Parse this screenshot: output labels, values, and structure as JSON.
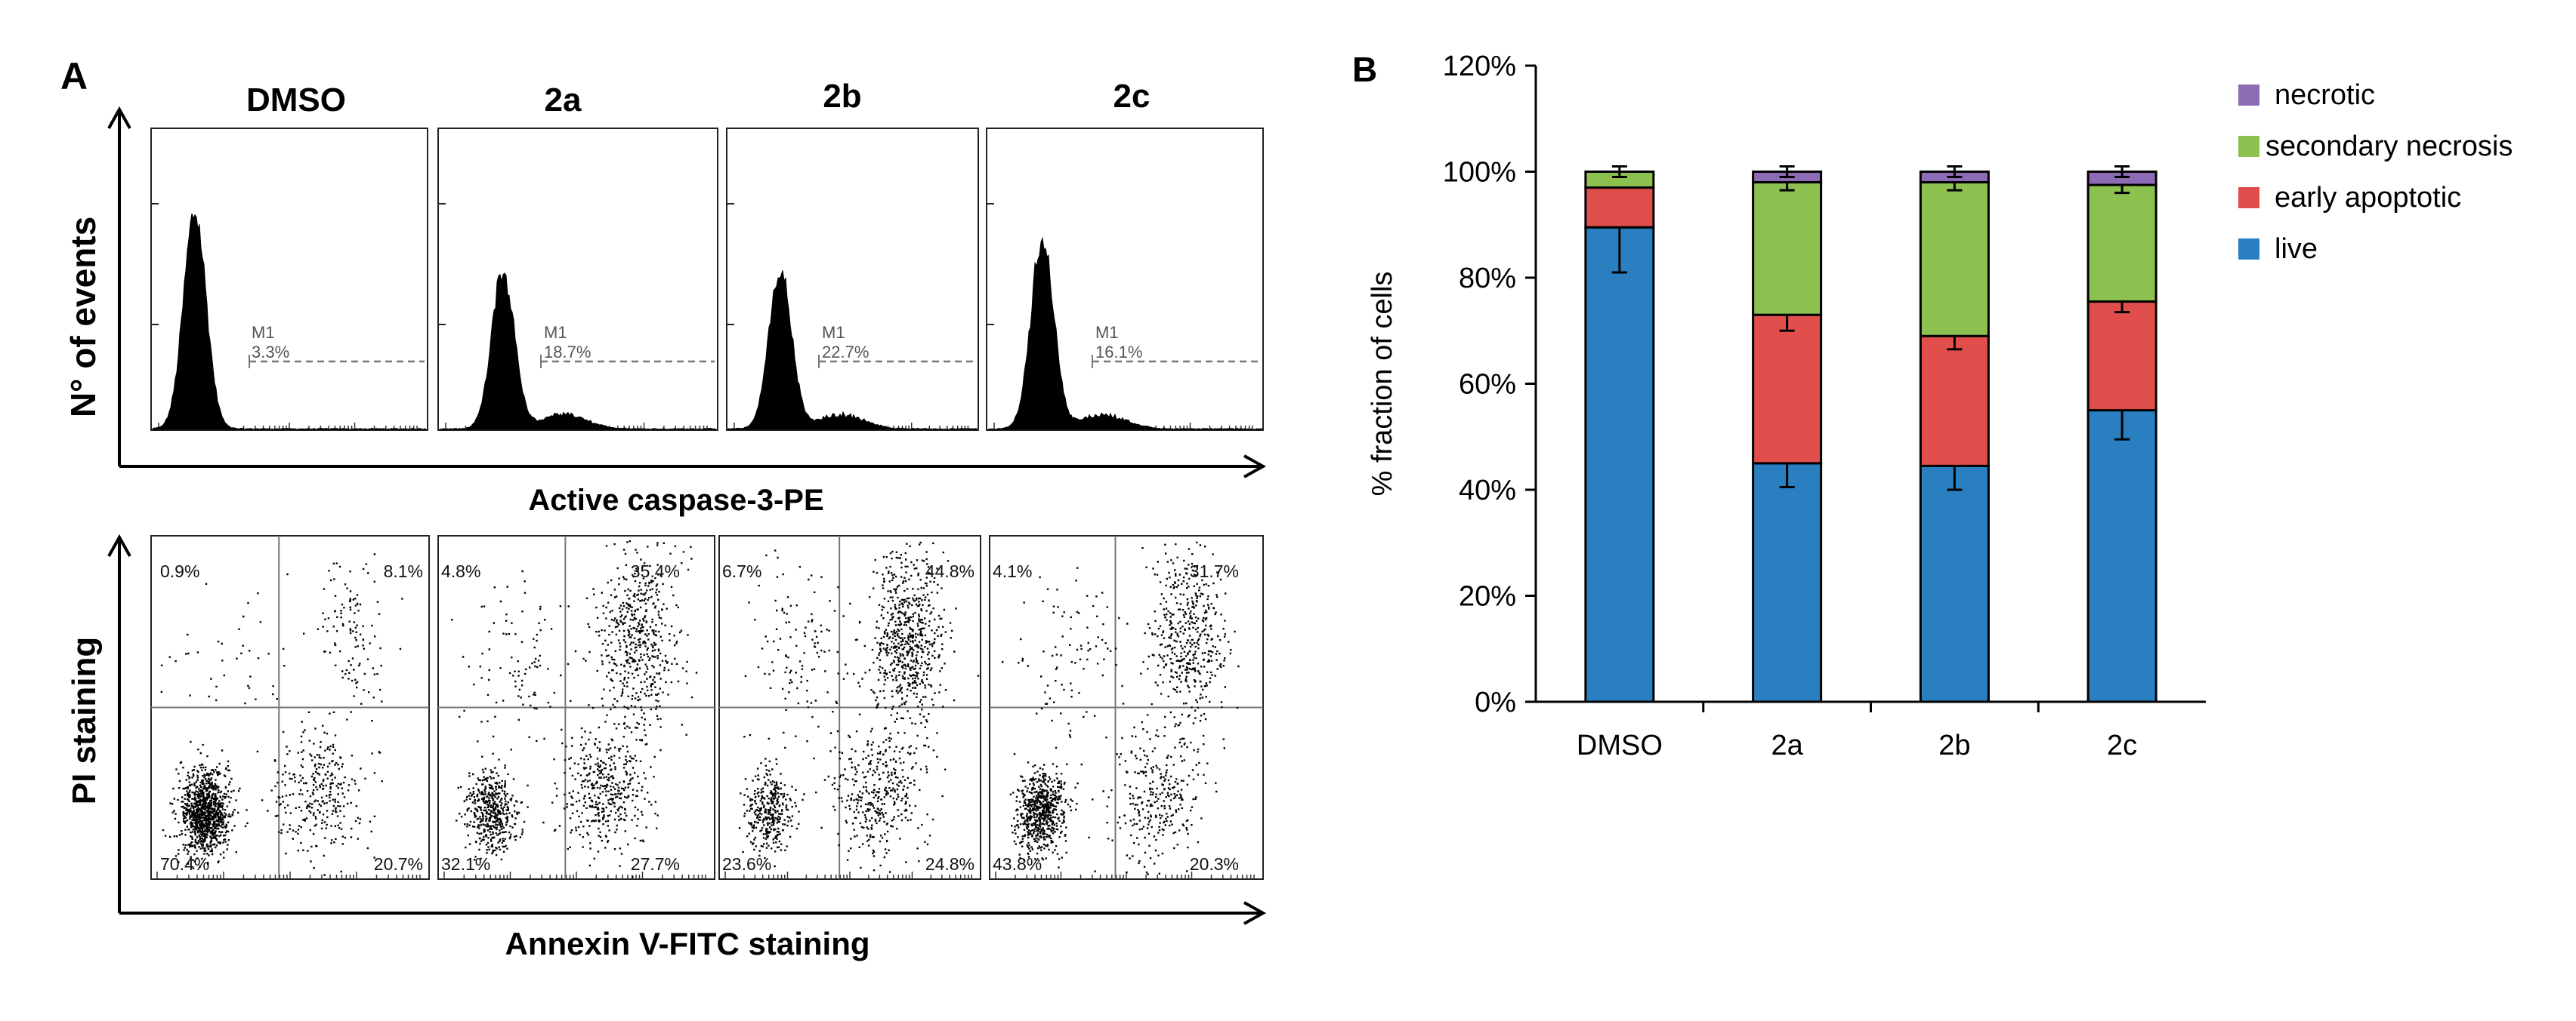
{
  "panel_a": {
    "label": "A",
    "histograms": {
      "y_label": "N° of events",
      "x_label": "Active caspase-3-PE",
      "marker_label": "M1",
      "panels": [
        {
          "title": "DMSO",
          "m1_percent": "3.3%",
          "second_peak": false
        },
        {
          "title": "2a",
          "m1_percent": "18.7%",
          "second_peak": true
        },
        {
          "title": "2b",
          "m1_percent": "22.7%",
          "second_peak": true
        },
        {
          "title": "2c",
          "m1_percent": "16.1%",
          "second_peak": true
        }
      ]
    },
    "dotplots": {
      "y_label": "PI staining",
      "x_label": "Annexin V-FITC staining",
      "panels": [
        {
          "condition": "DMSO",
          "upper_left": "0.9%",
          "upper_right": "8.1%",
          "lower_left": "70.4%",
          "lower_right": "20.7%"
        },
        {
          "condition": "2a",
          "upper_left": "4.8%",
          "upper_right": "35.4%",
          "lower_left": "32.1%",
          "lower_right": "27.7%"
        },
        {
          "condition": "2b",
          "upper_left": "6.7%",
          "upper_right": "44.8%",
          "lower_left": "23.6%",
          "lower_right": "24.8%"
        },
        {
          "condition": "2c",
          "upper_left": "4.1%",
          "upper_right": "31.7%",
          "lower_left": "43.8%",
          "lower_right": "20.3%"
        }
      ]
    }
  },
  "panel_b": {
    "label": "B"
  },
  "chart_data": {
    "type": "bar",
    "stacked": true,
    "title": "",
    "xlabel": "",
    "ylabel": "% fraction of cells",
    "ylim": [
      0,
      120
    ],
    "yticks": [
      0,
      20,
      40,
      60,
      80,
      100,
      120
    ],
    "ytick_labels": [
      "0%",
      "20%",
      "40%",
      "60%",
      "80%",
      "100%",
      "120%"
    ],
    "categories": [
      "DMSO",
      "2a",
      "2b",
      "2c"
    ],
    "series": [
      {
        "name": "live",
        "color": "#2A7FC1",
        "values": [
          89.5,
          45,
          44.5,
          55
        ],
        "errors": [
          8.5,
          4.5,
          4.5,
          5.5
        ]
      },
      {
        "name": "early apoptotic",
        "color": "#E04E4B",
        "values": [
          7.5,
          28,
          24.5,
          20.5
        ],
        "errors": [
          0,
          3,
          2.5,
          2
        ]
      },
      {
        "name": "secondary necrosis",
        "color": "#8CC04F",
        "values": [
          3,
          25,
          29,
          22
        ],
        "errors": [
          0,
          1.5,
          1.5,
          1.5
        ]
      },
      {
        "name": "necrotic",
        "color": "#8E6BB5",
        "values": [
          0,
          2,
          2,
          2.5
        ],
        "errors": [
          1,
          1,
          1,
          1
        ]
      }
    ],
    "legend_order": [
      "necrotic",
      "secondary necrosis",
      "early apoptotic",
      "live"
    ],
    "legend_position": "right",
    "grid": false
  }
}
